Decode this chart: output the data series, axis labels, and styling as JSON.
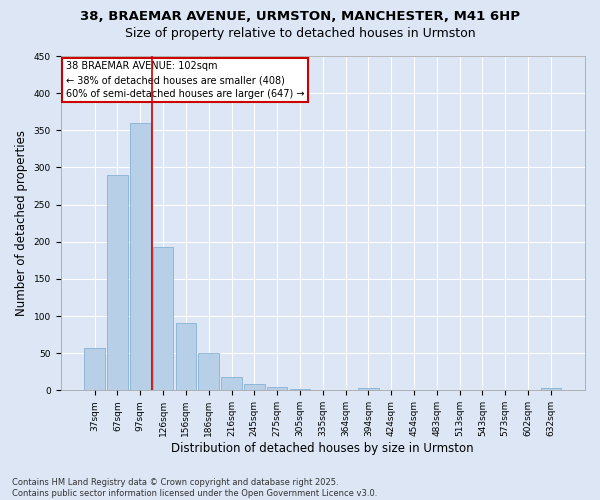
{
  "title1": "38, BRAEMAR AVENUE, URMSTON, MANCHESTER, M41 6HP",
  "title2": "Size of property relative to detached houses in Urmston",
  "xlabel": "Distribution of detached houses by size in Urmston",
  "ylabel": "Number of detached properties",
  "categories": [
    "37sqm",
    "67sqm",
    "97sqm",
    "126sqm",
    "156sqm",
    "186sqm",
    "216sqm",
    "245sqm",
    "275sqm",
    "305sqm",
    "335sqm",
    "364sqm",
    "394sqm",
    "424sqm",
    "454sqm",
    "483sqm",
    "513sqm",
    "543sqm",
    "573sqm",
    "602sqm",
    "632sqm"
  ],
  "values": [
    57,
    290,
    360,
    193,
    90,
    50,
    18,
    8,
    4,
    2,
    1,
    0,
    3,
    0,
    0,
    0,
    0,
    0,
    0,
    0,
    3
  ],
  "bar_color": "#b8cfe8",
  "bar_edge_color": "#7aaad0",
  "red_line_x": 2.5,
  "annotation_text": "38 BRAEMAR AVENUE: 102sqm\n← 38% of detached houses are smaller (408)\n60% of semi-detached houses are larger (647) →",
  "annotation_box_color": "#ffffff",
  "annotation_box_edge": "#cc0000",
  "ylim": [
    0,
    450
  ],
  "yticks": [
    0,
    50,
    100,
    150,
    200,
    250,
    300,
    350,
    400,
    450
  ],
  "footer": "Contains HM Land Registry data © Crown copyright and database right 2025.\nContains public sector information licensed under the Open Government Licence v3.0.",
  "background_color": "#dce6f5",
  "plot_background": "#dce6f5",
  "grid_color": "#ffffff",
  "title_fontsize": 9.5,
  "subtitle_fontsize": 9,
  "tick_fontsize": 6.5,
  "label_fontsize": 8.5,
  "annotation_fontsize": 7,
  "footer_fontsize": 6
}
